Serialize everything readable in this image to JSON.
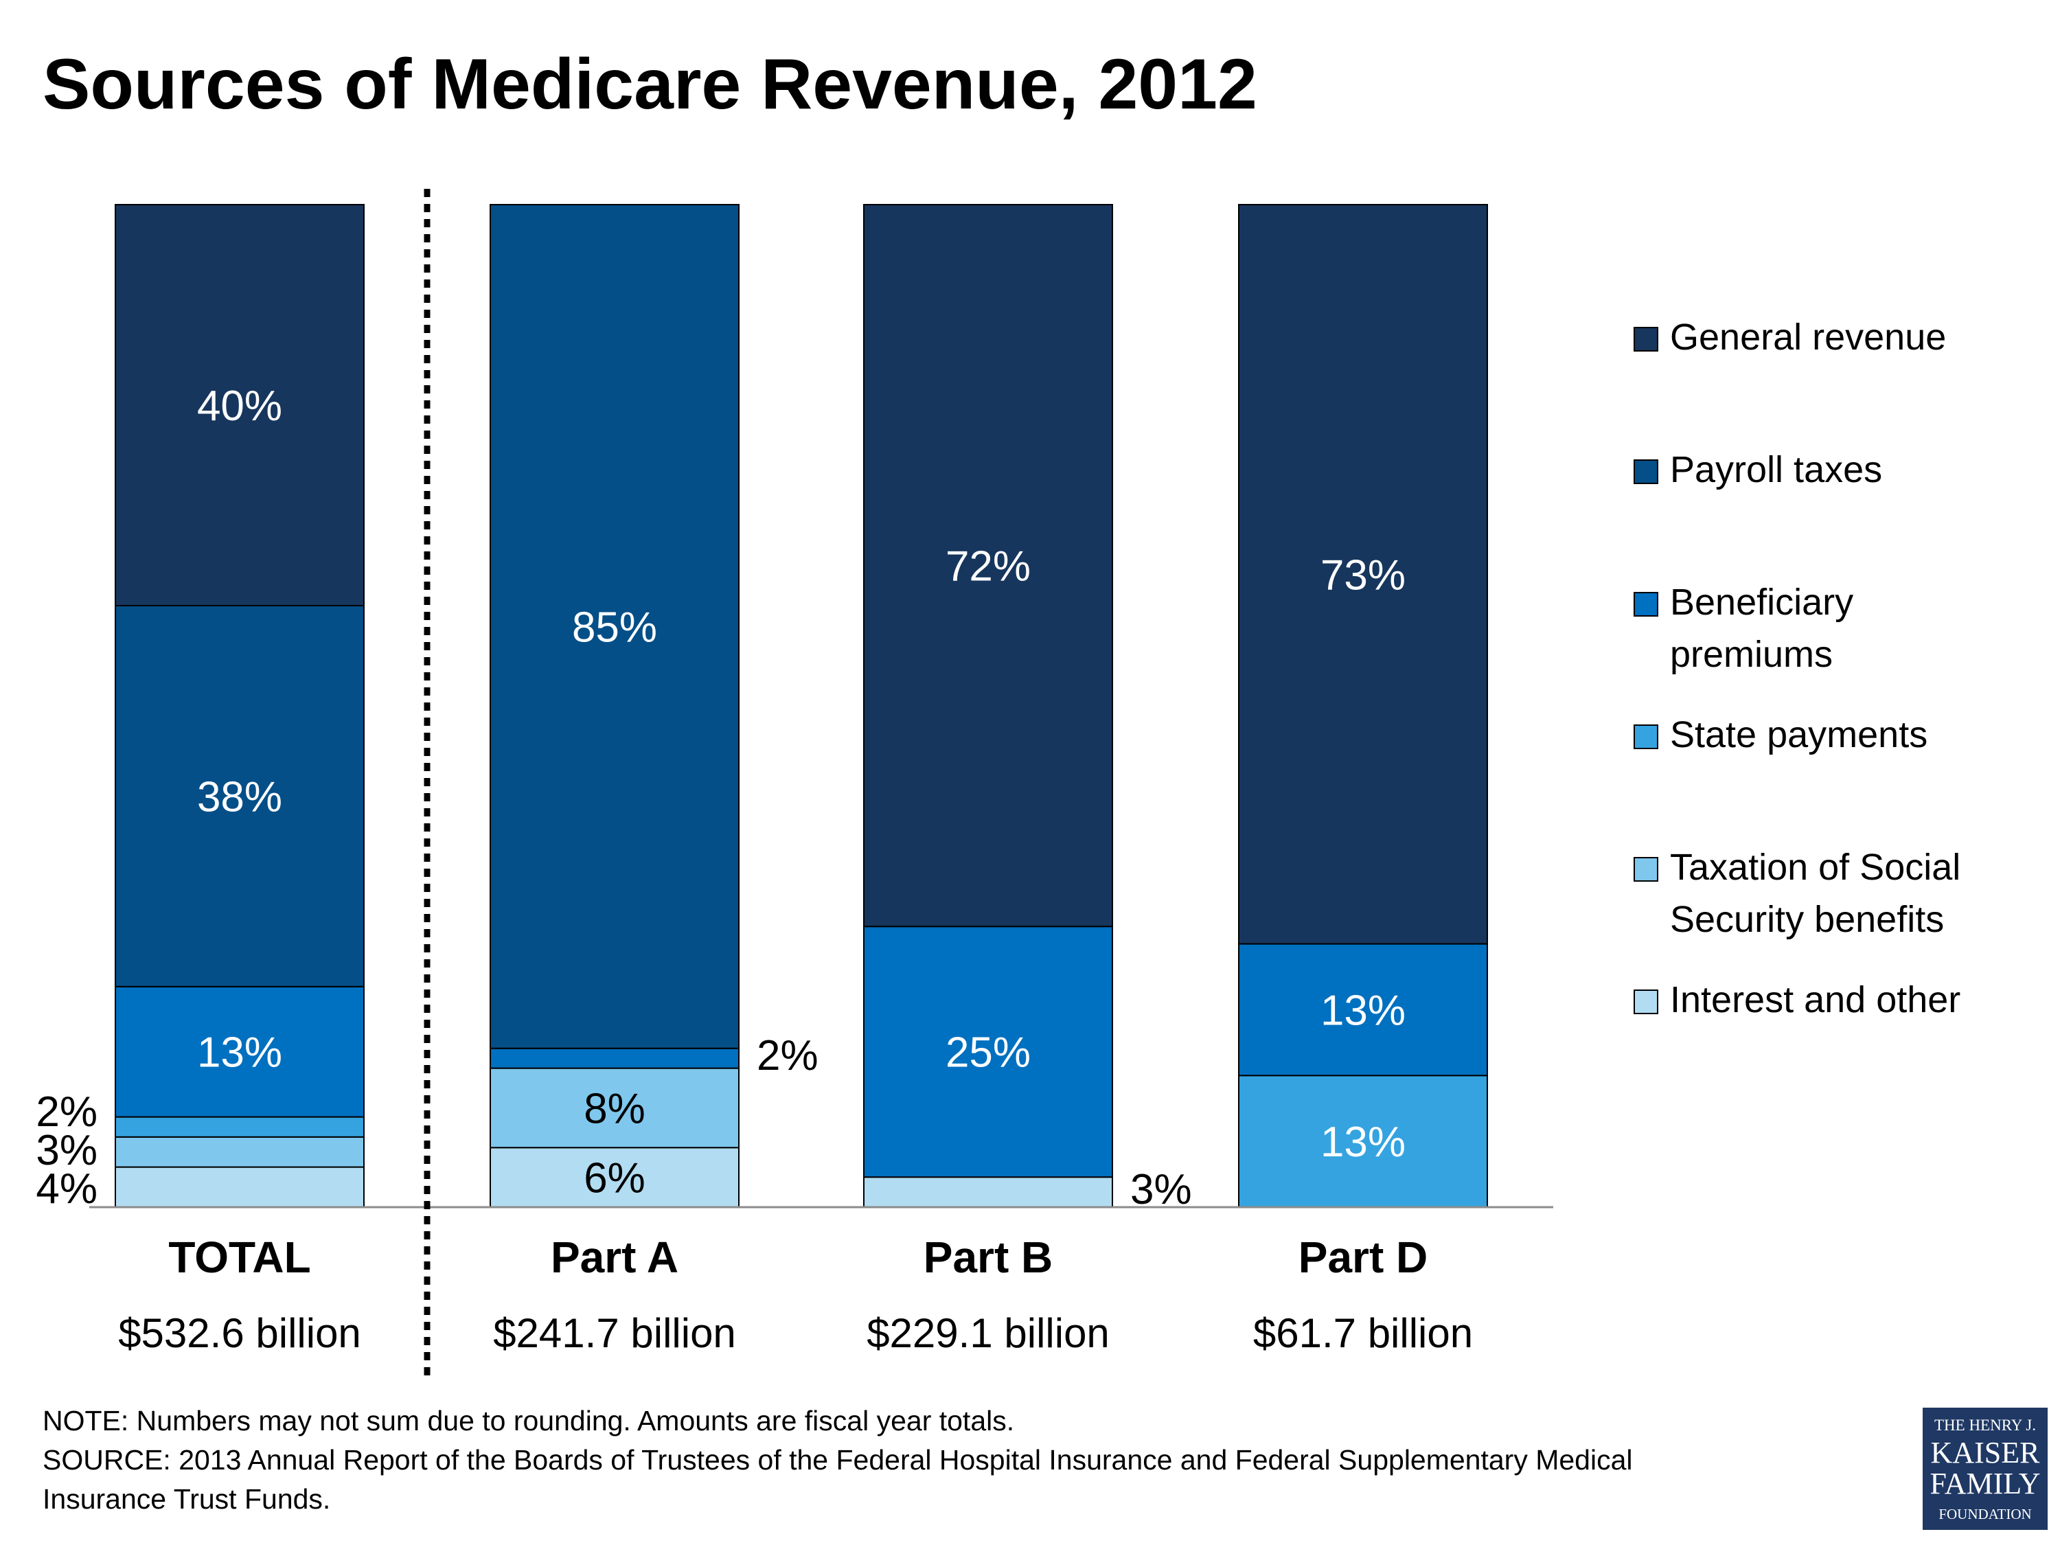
{
  "title": "Sources of Medicare Revenue, 2012",
  "chart_data": {
    "type": "bar",
    "stacked": true,
    "normalized_percent": true,
    "categories": [
      "TOTAL",
      "Part A",
      "Part B",
      "Part D"
    ],
    "category_totals": [
      "$532.6 billion",
      "$241.7 billion",
      "$229.1 billion",
      "$61.7 billion"
    ],
    "series": [
      {
        "name": "Interest  and other",
        "color": "#b2dcf1",
        "values": [
          4,
          6,
          3,
          0
        ],
        "labels": [
          "4%",
          "6%",
          "3%",
          ""
        ]
      },
      {
        "name": "Taxation of Social Security benefits",
        "color": "#7fc7ed",
        "values": [
          3,
          8,
          0,
          0
        ],
        "labels": [
          "3%",
          "8%",
          "",
          ""
        ]
      },
      {
        "name": "State payments",
        "color": "#35a3e0",
        "values": [
          2,
          0,
          0,
          13
        ],
        "labels": [
          "2%",
          "",
          "",
          "13%"
        ]
      },
      {
        "name": "Beneficiary premiums",
        "color": "#0070c0",
        "values": [
          13,
          2,
          25,
          13
        ],
        "labels": [
          "13%",
          "2%",
          "25%",
          "13%"
        ]
      },
      {
        "name": "Payroll taxes",
        "color": "#044f88",
        "values": [
          38,
          85,
          0,
          0
        ],
        "labels": [
          "38%",
          "85%",
          "",
          ""
        ]
      },
      {
        "name": "General revenue",
        "color": "#17365d",
        "values": [
          40,
          0,
          72,
          73
        ],
        "labels": [
          "40%",
          "",
          "72%",
          "73%"
        ]
      }
    ],
    "legend_order": [
      "General revenue",
      "Payroll taxes",
      "Beneficiary premiums",
      "State payments",
      "Taxation of Social Security benefits",
      "Interest  and other"
    ],
    "legend_lines": {
      "General revenue": [
        "General revenue"
      ],
      "Payroll taxes": [
        "Payroll taxes"
      ],
      "Beneficiary premiums": [
        "Beneficiary",
        "premiums"
      ],
      "State payments": [
        "State payments"
      ],
      "Taxation of Social Security benefits": [
        "Taxation of Social",
        "Security benefits"
      ],
      "Interest  and other": [
        "Interest  and other"
      ]
    },
    "legend_position": "right",
    "grid": false,
    "separator_after_first_category": true
  },
  "notes": {
    "line1": "NOTE: Numbers may not sum due to rounding.  Amounts are fiscal year totals.",
    "line2": "SOURCE: 2013 Annual Report of the Boards of Trustees of the Federal Hospital Insurance and Federal Supplementary Medical",
    "line3": "Insurance Trust Funds."
  },
  "logo": {
    "line1": "THE HENRY J.",
    "line2": "KAISER",
    "line3": "FAMILY",
    "line4": "FOUNDATION",
    "color": "#1f3864"
  }
}
